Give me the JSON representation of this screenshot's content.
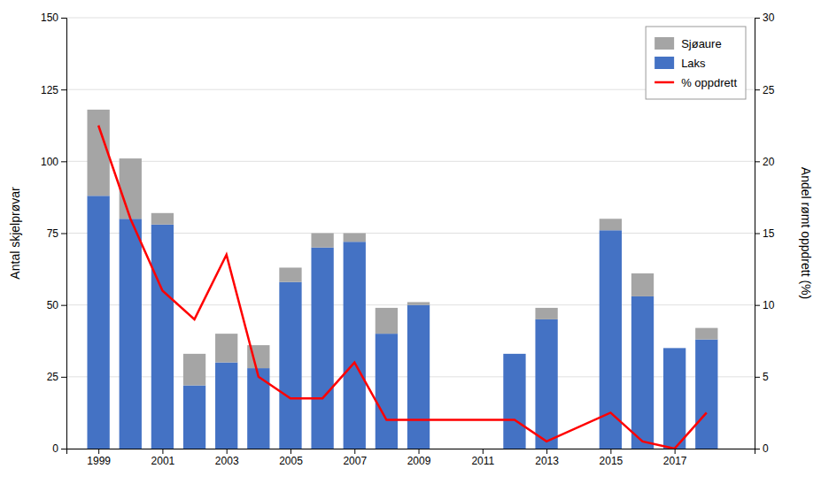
{
  "chart_data": {
    "type": "bar",
    "stacked": true,
    "x": [
      1999,
      2000,
      2001,
      2002,
      2003,
      2004,
      2005,
      2006,
      2007,
      2008,
      2009,
      2012,
      2013,
      2015,
      2016,
      2017,
      2018
    ],
    "series": [
      {
        "name": "Laks",
        "type": "bar",
        "color": "#4472C4",
        "values": [
          88,
          80,
          78,
          22,
          30,
          28,
          58,
          70,
          72,
          40,
          50,
          33,
          45,
          76,
          53,
          35,
          38
        ]
      },
      {
        "name": "Sjøaure",
        "type": "bar",
        "color": "#A5A5A5",
        "values": [
          30,
          21,
          4,
          11,
          10,
          8,
          5,
          5,
          3,
          9,
          1,
          0,
          4,
          4,
          8,
          0,
          4
        ]
      },
      {
        "name": "% oppdrett",
        "type": "line",
        "axis": "y2",
        "color": "#FF0000",
        "values": [
          22.5,
          16,
          11,
          9,
          13.5,
          5,
          3.5,
          3.5,
          6,
          2,
          2,
          2,
          0.5,
          2.5,
          0.5,
          0,
          2.5
        ]
      }
    ],
    "y_label": "Antal skjelprøvar",
    "y2_label": "Andel rømt oppdrett (%)",
    "xlim": [
      1998.0,
      2019.5
    ],
    "xticks": [
      1999,
      2001,
      2003,
      2005,
      2007,
      2009,
      2011,
      2013,
      2015,
      2017
    ],
    "ylim": [
      0,
      150
    ],
    "yticks": [
      0,
      25,
      50,
      75,
      100,
      125,
      150
    ],
    "y2lim": [
      0,
      30
    ],
    "y2ticks": [
      0,
      5,
      10,
      15,
      20,
      25,
      30
    ],
    "grid": true,
    "legend": "upper right"
  }
}
